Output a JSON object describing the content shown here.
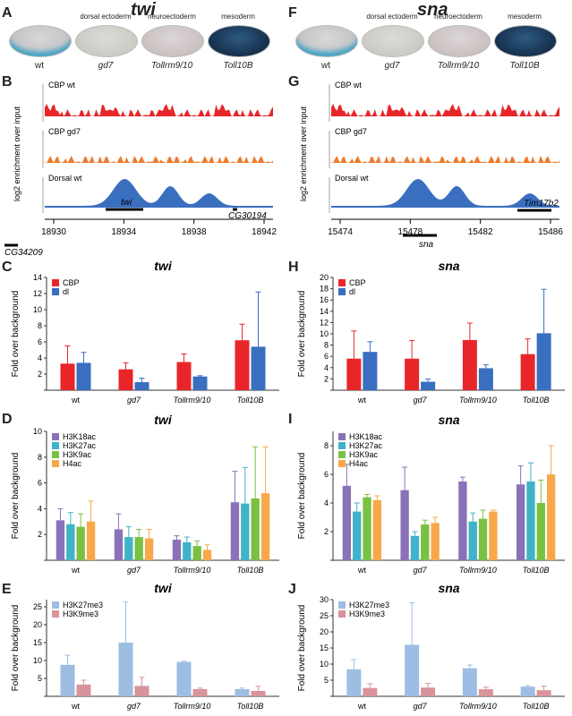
{
  "left": {
    "gene": "twi",
    "panels": {
      "A": "A",
      "B": "B",
      "C": "C",
      "D": "D",
      "E": "E"
    },
    "embryos": [
      {
        "top": "",
        "label": "wt"
      },
      {
        "top": "dorsal ectoderm",
        "label": "gd7"
      },
      {
        "top": "neuroectoderm",
        "label": "Tollrm9/10"
      },
      {
        "top": "mesoderm",
        "label": "Toll10B"
      }
    ],
    "tracks": [
      {
        "name": "CBP wt",
        "color": "#e8262a"
      },
      {
        "name": "CBP gd7",
        "color": "#ef7a2b"
      },
      {
        "name": "Dorsal wt",
        "color": "#3a6fc0"
      }
    ],
    "genome": {
      "ticks": [
        "18930",
        "18934",
        "18938",
        "18942"
      ],
      "genes": [
        "twi",
        "CG30194",
        "CG34209"
      ]
    },
    "ylabel_tracks": "log2 enrichment over input",
    "chart_data": [
      {
        "type": "bar",
        "title": "twi",
        "ylabel": "Fold over background",
        "categories": [
          "wt",
          "gd7",
          "Tollrm9/10",
          "Toll10B"
        ],
        "ylim": [
          0,
          14
        ],
        "series": [
          {
            "name": "CBP",
            "color": "#e8262a",
            "values": [
              3.3,
              2.6,
              3.5,
              6.2
            ],
            "err": [
              2.2,
              0.8,
              1.0,
              2.0
            ]
          },
          {
            "name": "dl",
            "color": "#3a6fc0",
            "values": [
              3.4,
              1.0,
              1.7,
              5.4
            ],
            "err": [
              1.3,
              0.5,
              0.1,
              6.8
            ]
          }
        ]
      },
      {
        "type": "bar",
        "title": "twi",
        "ylabel": "Fold over background",
        "categories": [
          "wt",
          "gd7",
          "Tollrm9/10",
          "Toll10B"
        ],
        "ylim": [
          0,
          10
        ],
        "series": [
          {
            "name": "H3K18ac",
            "color": "#8a72b8",
            "values": [
              3.1,
              2.4,
              1.6,
              4.5
            ],
            "err": [
              0.9,
              1.2,
              0.3,
              2.4
            ]
          },
          {
            "name": "H3K27ac",
            "color": "#40b3c8",
            "values": [
              2.8,
              1.8,
              1.4,
              4.4
            ],
            "err": [
              0.9,
              0.8,
              0.4,
              2.8
            ]
          },
          {
            "name": "H3K9ac",
            "color": "#7ac143",
            "values": [
              2.6,
              1.8,
              1.1,
              4.8
            ],
            "err": [
              1.0,
              0.6,
              0.4,
              4.0
            ]
          },
          {
            "name": "H4ac",
            "color": "#f7a84a",
            "values": [
              3.0,
              1.7,
              0.8,
              5.2
            ],
            "err": [
              1.6,
              0.7,
              0.4,
              3.6
            ]
          }
        ]
      },
      {
        "type": "bar",
        "title": "twi",
        "ylabel": "Fold over background",
        "categories": [
          "wt",
          "gd7",
          "Tollrm9/10",
          "Toll10B"
        ],
        "ylim": [
          0,
          27
        ],
        "series": [
          {
            "name": "H3K27me3",
            "color": "#9dbde2",
            "values": [
              8.8,
              15.0,
              9.6,
              2.0
            ],
            "err": [
              2.7,
              11.3,
              0.2,
              0.3
            ]
          },
          {
            "name": "H3K9me3",
            "color": "#d9939a",
            "values": [
              3.3,
              2.9,
              2.0,
              1.5
            ],
            "err": [
              1.2,
              2.4,
              0.3,
              1.3
            ]
          }
        ]
      }
    ]
  },
  "right": {
    "gene": "sna",
    "panels": {
      "F": "F",
      "G": "G",
      "H": "H",
      "I": "I",
      "J": "J"
    },
    "embryos": [
      {
        "top": "",
        "label": "wt"
      },
      {
        "top": "dorsal ectoderm",
        "label": "gd7"
      },
      {
        "top": "neuroectoderm",
        "label": "Tollrm9/10"
      },
      {
        "top": "mesoderm",
        "label": "Toll10B"
      }
    ],
    "tracks": [
      {
        "name": "CBP wt",
        "color": "#e8262a"
      },
      {
        "name": "CBP gd7",
        "color": "#ef7a2b"
      },
      {
        "name": "Dorsal wt",
        "color": "#3a6fc0"
      }
    ],
    "genome": {
      "ticks": [
        "15474",
        "15478",
        "15482",
        "15486"
      ],
      "genes": [
        "sna",
        "Tim17b2"
      ]
    },
    "ylabel_tracks": "log2 enrichment over input",
    "chart_data": [
      {
        "type": "bar",
        "title": "sna",
        "ylabel": "Fold over background",
        "categories": [
          "wt",
          "gd7",
          "Tollrm9/10",
          "Toll10B"
        ],
        "ylim": [
          0,
          20
        ],
        "series": [
          {
            "name": "CBP",
            "color": "#e8262a",
            "values": [
              5.6,
              5.6,
              8.9,
              6.4
            ],
            "err": [
              4.9,
              3.2,
              3.0,
              2.7
            ]
          },
          {
            "name": "dl",
            "color": "#3a6fc0",
            "values": [
              6.8,
              1.5,
              3.9,
              10.1
            ],
            "err": [
              1.8,
              0.5,
              0.6,
              7.8
            ]
          }
        ]
      },
      {
        "type": "bar",
        "title": "sna",
        "ylabel": "Fold over background",
        "categories": [
          "wt",
          "gd7",
          "Tollrm9/10",
          "Toll10B"
        ],
        "ylim": [
          0,
          9
        ],
        "series": [
          {
            "name": "H3K18ac",
            "color": "#8a72b8",
            "values": [
              5.2,
              4.9,
              5.5,
              5.3
            ],
            "err": [
              1.5,
              1.6,
              0.3,
              1.3
            ]
          },
          {
            "name": "H3K27ac",
            "color": "#40b3c8",
            "values": [
              3.4,
              1.7,
              2.7,
              5.5
            ],
            "err": [
              0.6,
              0.3,
              0.6,
              1.3
            ]
          },
          {
            "name": "H3K9ac",
            "color": "#7ac143",
            "values": [
              4.4,
              2.5,
              2.9,
              4.0
            ],
            "err": [
              0.2,
              0.3,
              0.6,
              1.6
            ]
          },
          {
            "name": "H4ac",
            "color": "#f7a84a",
            "values": [
              4.2,
              2.6,
              3.4,
              6.0
            ],
            "err": [
              0.3,
              0.4,
              0.1,
              2.0
            ]
          }
        ]
      },
      {
        "type": "bar",
        "title": "sna",
        "ylabel": "Fold over background",
        "categories": [
          "wt",
          "gd7",
          "Tollrm9/10",
          "Toll10B"
        ],
        "ylim": [
          0,
          30
        ],
        "series": [
          {
            "name": "H3K27me3",
            "color": "#9dbde2",
            "values": [
              8.4,
              16.0,
              8.7,
              3.0
            ],
            "err": [
              3.0,
              13.0,
              1.0,
              0.3
            ]
          },
          {
            "name": "H3K9me3",
            "color": "#d9939a",
            "values": [
              2.6,
              2.7,
              2.2,
              1.9
            ],
            "err": [
              1.3,
              1.3,
              0.6,
              1.3
            ]
          }
        ]
      }
    ]
  }
}
